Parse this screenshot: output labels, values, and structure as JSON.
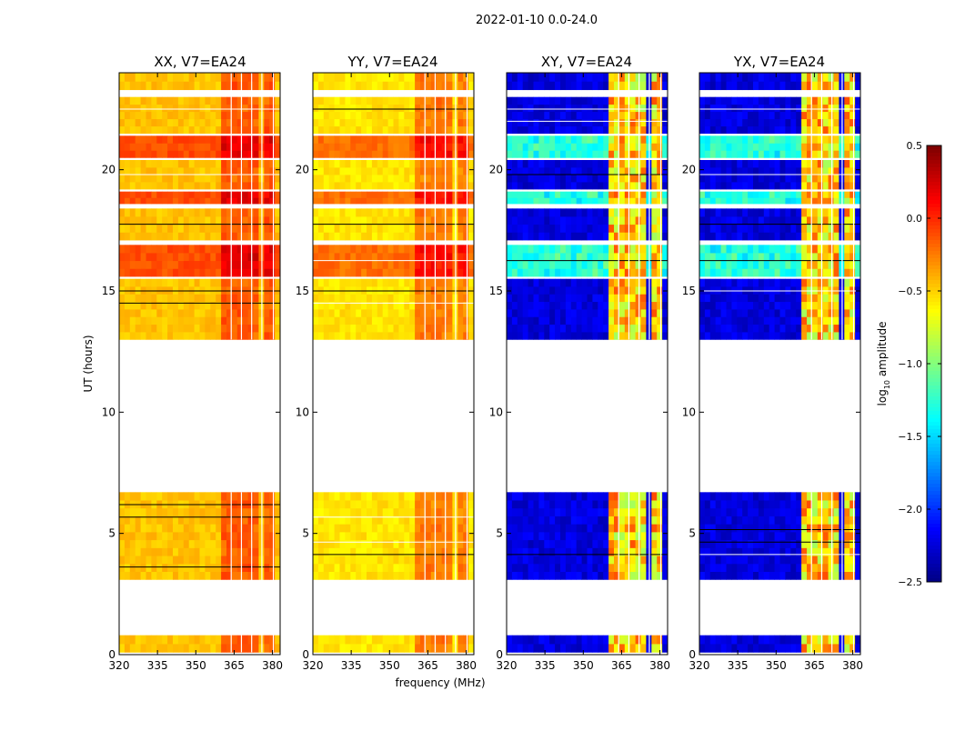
{
  "chart_data": {
    "type": "heatmap",
    "suptitle": "2022-01-10 0.0-24.0",
    "xlabel": "frequency (MHz)",
    "ylabel": "UT (hours)",
    "xlim": [
      320,
      383
    ],
    "ylim": [
      0,
      24
    ],
    "xticks": [
      320,
      335,
      350,
      365,
      380
    ],
    "yticks": [
      0,
      5,
      10,
      15,
      20
    ],
    "panels": [
      {
        "title": "XX, V7=EA24",
        "kind": "parallel",
        "base_level": -0.45
      },
      {
        "title": "YY, V7=EA24",
        "kind": "parallel",
        "base_level": -0.55
      },
      {
        "title": "XY, V7=EA24",
        "kind": "cross",
        "base_level": -2.35
      },
      {
        "title": "YX, V7=EA24",
        "kind": "cross",
        "base_level": -2.35
      }
    ],
    "data_bands_hours": [
      [
        0.1,
        0.8
      ],
      [
        3.1,
        6.7
      ],
      [
        13.0,
        15.5
      ],
      [
        15.6,
        16.9
      ],
      [
        17.1,
        18.4
      ],
      [
        18.6,
        19.1
      ],
      [
        19.2,
        20.4
      ],
      [
        20.5,
        21.4
      ],
      [
        21.5,
        23.0
      ],
      [
        23.3,
        24.0
      ]
    ],
    "rfi_channels_mhz": [
      [
        360,
        363.5
      ],
      [
        364,
        367.5
      ],
      [
        368.5,
        371.5
      ],
      [
        372.5,
        375.5
      ],
      [
        376.5,
        380
      ]
    ],
    "colorbar": {
      "label": "log",
      "label_sub": "10",
      "label_rest": " amplitude",
      "range": [
        -2.5,
        0.5
      ],
      "ticks": [
        "0.5",
        "0.0",
        "−0.5",
        "−1.0",
        "−1.5",
        "−2.0",
        "−2.5"
      ],
      "tick_values": [
        0.5,
        0.0,
        -0.5,
        -1.0,
        -1.5,
        -2.0,
        -2.5
      ],
      "colormap": "jet"
    }
  }
}
